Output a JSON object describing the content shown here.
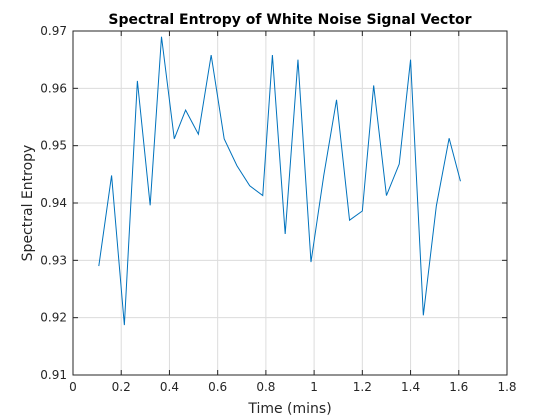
{
  "chart_data": {
    "type": "line",
    "title": "Spectral Entropy of White Noise Signal Vector",
    "xlabel": "Time (mins)",
    "ylabel": "Spectral Entropy",
    "xlim": [
      0,
      1.8
    ],
    "ylim": [
      0.91,
      0.97
    ],
    "xticks": [
      0,
      0.2,
      0.4,
      0.6,
      0.8,
      1,
      1.2,
      1.4,
      1.6,
      1.8
    ],
    "xtick_labels": [
      "0",
      "0.2",
      "0.4",
      "0.6",
      "0.8",
      "1",
      "1.2",
      "1.4",
      "1.6",
      "1.8"
    ],
    "yticks": [
      0.91,
      0.92,
      0.93,
      0.94,
      0.95,
      0.96,
      0.97
    ],
    "ytick_labels": [
      "0.91",
      "0.92",
      "0.93",
      "0.94",
      "0.95",
      "0.96",
      "0.97"
    ],
    "grid": true,
    "series": [
      {
        "color": "#0072bd",
        "x": [
          0.107,
          0.16,
          0.213,
          0.267,
          0.32,
          0.367,
          0.42,
          0.467,
          0.52,
          0.573,
          0.627,
          0.68,
          0.733,
          0.787,
          0.827,
          0.88,
          0.933,
          0.987,
          1.04,
          1.093,
          1.147,
          1.2,
          1.247,
          1.3,
          1.353,
          1.4,
          1.453,
          1.507,
          1.56,
          1.607
        ],
        "y": [
          0.929,
          0.9448,
          0.9187,
          0.9613,
          0.9396,
          0.969,
          0.9512,
          0.9562,
          0.952,
          0.9658,
          0.9512,
          0.9465,
          0.943,
          0.9413,
          0.9658,
          0.9346,
          0.965,
          0.9297,
          0.9448,
          0.958,
          0.937,
          0.9386,
          0.9605,
          0.9413,
          0.9468,
          0.965,
          0.9204,
          0.9395,
          0.9513,
          0.9438
        ]
      }
    ]
  }
}
